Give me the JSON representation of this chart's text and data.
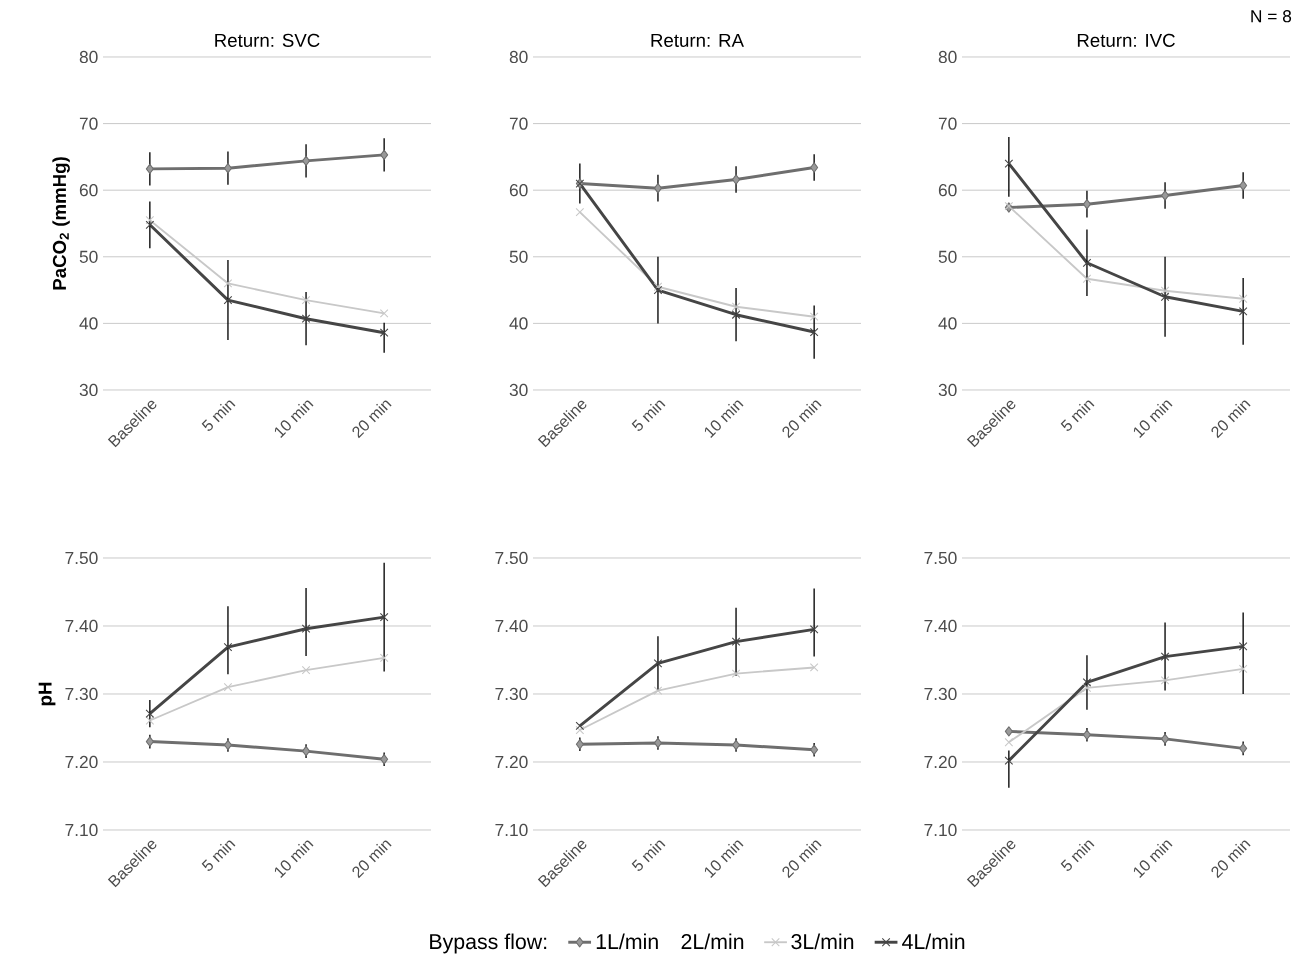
{
  "chart_data": [
    {
      "type": "line",
      "title": "Return: SVC",
      "ylabel": "PaCO$_{2}$ (mmHg)",
      "categories": [
        "Baseline",
        "5 min",
        "10 min",
        "20 min"
      ],
      "ylim": [
        30,
        80
      ],
      "yticks": [
        30,
        40,
        50,
        60,
        70,
        80
      ],
      "grid": "y",
      "legend": false,
      "series": [
        {
          "color": "#6e6e6e",
          "marker": "diamond",
          "values": [
            63.2,
            63.3,
            64.4,
            65.3
          ],
          "errors": [
            2.5,
            2.5,
            2.5,
            2.5
          ]
        },
        {
          "marker": "none",
          "values": [
            null,
            null,
            null,
            null
          ]
        },
        {
          "color": "#c8c8c8",
          "marker": "cross",
          "values": [
            55.5,
            46,
            43.5,
            41.5
          ]
        },
        {
          "color": "#454545",
          "marker": "cross",
          "values": [
            54.8,
            43.5,
            40.7,
            38.6
          ],
          "errors": [
            3.5,
            6,
            4,
            [
              35.6,
              40.1
            ]
          ]
        }
      ]
    },
    {
      "type": "line",
      "title": "Return: RA",
      "categories": [
        "Baseline",
        "5 min",
        "10 min",
        "20 min"
      ],
      "ylim": [
        30,
        80
      ],
      "yticks": [
        30,
        40,
        50,
        60,
        70,
        80
      ],
      "grid": "y",
      "legend": false,
      "series": [
        {
          "color": "#6e6e6e",
          "marker": "diamond",
          "values": [
            61,
            60.3,
            61.6,
            63.4
          ],
          "errors": [
            null,
            2,
            2,
            2
          ]
        },
        {
          "marker": "none",
          "values": [
            null,
            null,
            null,
            null
          ]
        },
        {
          "color": "#c8c8c8",
          "marker": "cross",
          "values": [
            56.7,
            45.5,
            42.5,
            41
          ]
        },
        {
          "color": "#454545",
          "marker": "cross",
          "values": [
            61,
            45,
            41.3,
            38.7
          ],
          "errors": [
            3,
            5,
            4,
            4
          ]
        }
      ]
    },
    {
      "type": "line",
      "title": "Return: IVC",
      "categories": [
        "Baseline",
        "5 min",
        "10 min",
        "20 min"
      ],
      "ylim": [
        30,
        80
      ],
      "yticks": [
        30,
        40,
        50,
        60,
        70,
        80
      ],
      "grid": "y",
      "legend": false,
      "annotations": [
        "N = 8"
      ],
      "series": [
        {
          "color": "#6e6e6e",
          "marker": "diamond",
          "values": [
            57.4,
            57.9,
            59.2,
            60.7
          ],
          "errors": [
            null,
            2,
            2,
            2
          ]
        },
        {
          "marker": "none",
          "values": [
            null,
            null,
            null,
            null
          ]
        },
        {
          "color": "#c8c8c8",
          "marker": "cross",
          "values": [
            57.6,
            46.7,
            44.9,
            43.7
          ]
        },
        {
          "color": "#454545",
          "marker": "cross",
          "values": [
            64,
            49.1,
            44,
            41.8
          ],
          "errors": [
            [
              59,
              68
            ],
            5,
            6,
            5
          ]
        }
      ]
    },
    {
      "type": "line",
      "ylabel": "pH",
      "categories": [
        "Baseline",
        "5 min",
        "10 min",
        "20 min"
      ],
      "ylim": [
        7.1,
        7.5
      ],
      "yticks": [
        {
          "value": 7.1,
          "label": "7.10"
        },
        {
          "value": 7.2,
          "label": "7.20"
        },
        {
          "value": 7.3,
          "label": "7.30"
        },
        {
          "value": 7.4,
          "label": "7.40"
        },
        {
          "value": 7.5,
          "label": "7.50"
        }
      ],
      "grid": "y",
      "legend": false,
      "series": [
        {
          "color": "#6e6e6e",
          "marker": "diamond",
          "values": [
            7.23,
            7.225,
            7.216,
            7.204
          ],
          "errors": [
            0.01,
            0.01,
            0.01,
            0.01
          ]
        },
        {
          "marker": "none",
          "values": [
            null,
            null,
            null,
            null
          ]
        },
        {
          "color": "#c8c8c8",
          "marker": "cross",
          "values": [
            7.261,
            7.31,
            7.335,
            7.353
          ]
        },
        {
          "color": "#454545",
          "marker": "cross",
          "values": [
            7.271,
            7.369,
            7.396,
            7.413
          ],
          "errors": [
            0.02,
            [
              7.329,
              7.429
            ],
            [
              7.356,
              7.456
            ],
            0.08
          ]
        }
      ]
    },
    {
      "type": "line",
      "categories": [
        "Baseline",
        "5 min",
        "10 min",
        "20 min"
      ],
      "ylim": [
        7.1,
        7.5
      ],
      "yticks": [
        {
          "value": 7.1,
          "label": "7.10"
        },
        {
          "value": 7.2,
          "label": "7.20"
        },
        {
          "value": 7.3,
          "label": "7.30"
        },
        {
          "value": 7.4,
          "label": "7.40"
        },
        {
          "value": 7.5,
          "label": "7.50"
        }
      ],
      "grid": "y",
      "legend": "bottom",
      "legend_title": "Bypass flow:",
      "series": [
        {
          "name": "1L/min",
          "color": "#6e6e6e",
          "marker": "diamond",
          "values": [
            7.226,
            7.228,
            7.225,
            7.218
          ],
          "errors": [
            0.01,
            0.01,
            0.01,
            0.01
          ]
        },
        {
          "name": "2L/min",
          "marker": "none",
          "values": [
            null,
            null,
            null,
            null
          ]
        },
        {
          "name": "3L/min",
          "color": "#c8c8c8",
          "marker": "cross",
          "values": [
            7.247,
            7.305,
            7.33,
            7.339
          ]
        },
        {
          "name": "4L/min",
          "color": "#454545",
          "marker": "cross",
          "values": [
            7.253,
            7.345,
            7.377,
            7.395
          ],
          "errors": [
            null,
            0.04,
            0.05,
            [
              7.355,
              7.455
            ]
          ]
        }
      ]
    },
    {
      "type": "line",
      "categories": [
        "Baseline",
        "5 min",
        "10 min",
        "20 min"
      ],
      "ylim": [
        7.1,
        7.5
      ],
      "yticks": [
        {
          "value": 7.1,
          "label": "7.10"
        },
        {
          "value": 7.2,
          "label": "7.20"
        },
        {
          "value": 7.3,
          "label": "7.30"
        },
        {
          "value": 7.4,
          "label": "7.40"
        },
        {
          "value": 7.5,
          "label": "7.50"
        }
      ],
      "grid": "y",
      "legend": false,
      "series": [
        {
          "color": "#6e6e6e",
          "marker": "diamond",
          "values": [
            7.245,
            7.24,
            7.234,
            7.22
          ],
          "errors": [
            null,
            0.01,
            0.01,
            0.01
          ]
        },
        {
          "marker": "none",
          "values": [
            null,
            null,
            null,
            null
          ]
        },
        {
          "color": "#c8c8c8",
          "marker": "cross",
          "values": [
            7.229,
            7.309,
            7.32,
            7.337
          ]
        },
        {
          "color": "#454545",
          "marker": "cross",
          "values": [
            7.202,
            7.317,
            7.355,
            7.37
          ],
          "errors": [
            [
              7.162,
              7.217
            ],
            0.04,
            0.05,
            [
              7.3,
              7.42
            ]
          ]
        }
      ]
    }
  ]
}
